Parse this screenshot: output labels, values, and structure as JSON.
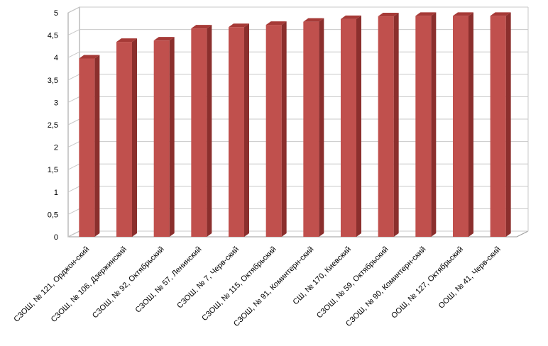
{
  "chart_data": {
    "type": "bar",
    "style": "3d-column",
    "title": "",
    "xlabel": "",
    "ylabel": "",
    "ylim": [
      0,
      5
    ],
    "y_ticks": [
      "0",
      "0,5",
      "1",
      "1,5",
      "2",
      "2,5",
      "3",
      "3,5",
      "4",
      "4,5",
      "5"
    ],
    "grid": true,
    "legend": "none",
    "colors": {
      "bar_front": "#C0504D",
      "bar_side": "#8B2F2D",
      "bar_top": "#A63A37",
      "grid": "#C8C8C8",
      "axis": "#999999"
    },
    "categories": [
      "СЗОШ, № 121, Орджон-ский",
      "СЗОШ, № 106, Дзержинский",
      "СЗОШ, № 92, Октябрьский",
      "СЗОШ, № 57, Ленинский",
      "СЗОШ, № 7, Черв-ский",
      "СЗОШ, № 115, Октябрьский",
      "СЗОШ, № 91, Коминтерн-ский",
      "СШ, № 170, Киевский",
      "СЗОШ, № 59, Октябрьский",
      "СЗОШ, № 90, Коминтерн-ский",
      "ООШ, № 127, Октябрьский",
      "ООШ, № 41, Черв-ский"
    ],
    "values": [
      3.98,
      4.35,
      4.38,
      4.65,
      4.68,
      4.73,
      4.8,
      4.86,
      4.92,
      4.93,
      4.93,
      4.93
    ]
  }
}
